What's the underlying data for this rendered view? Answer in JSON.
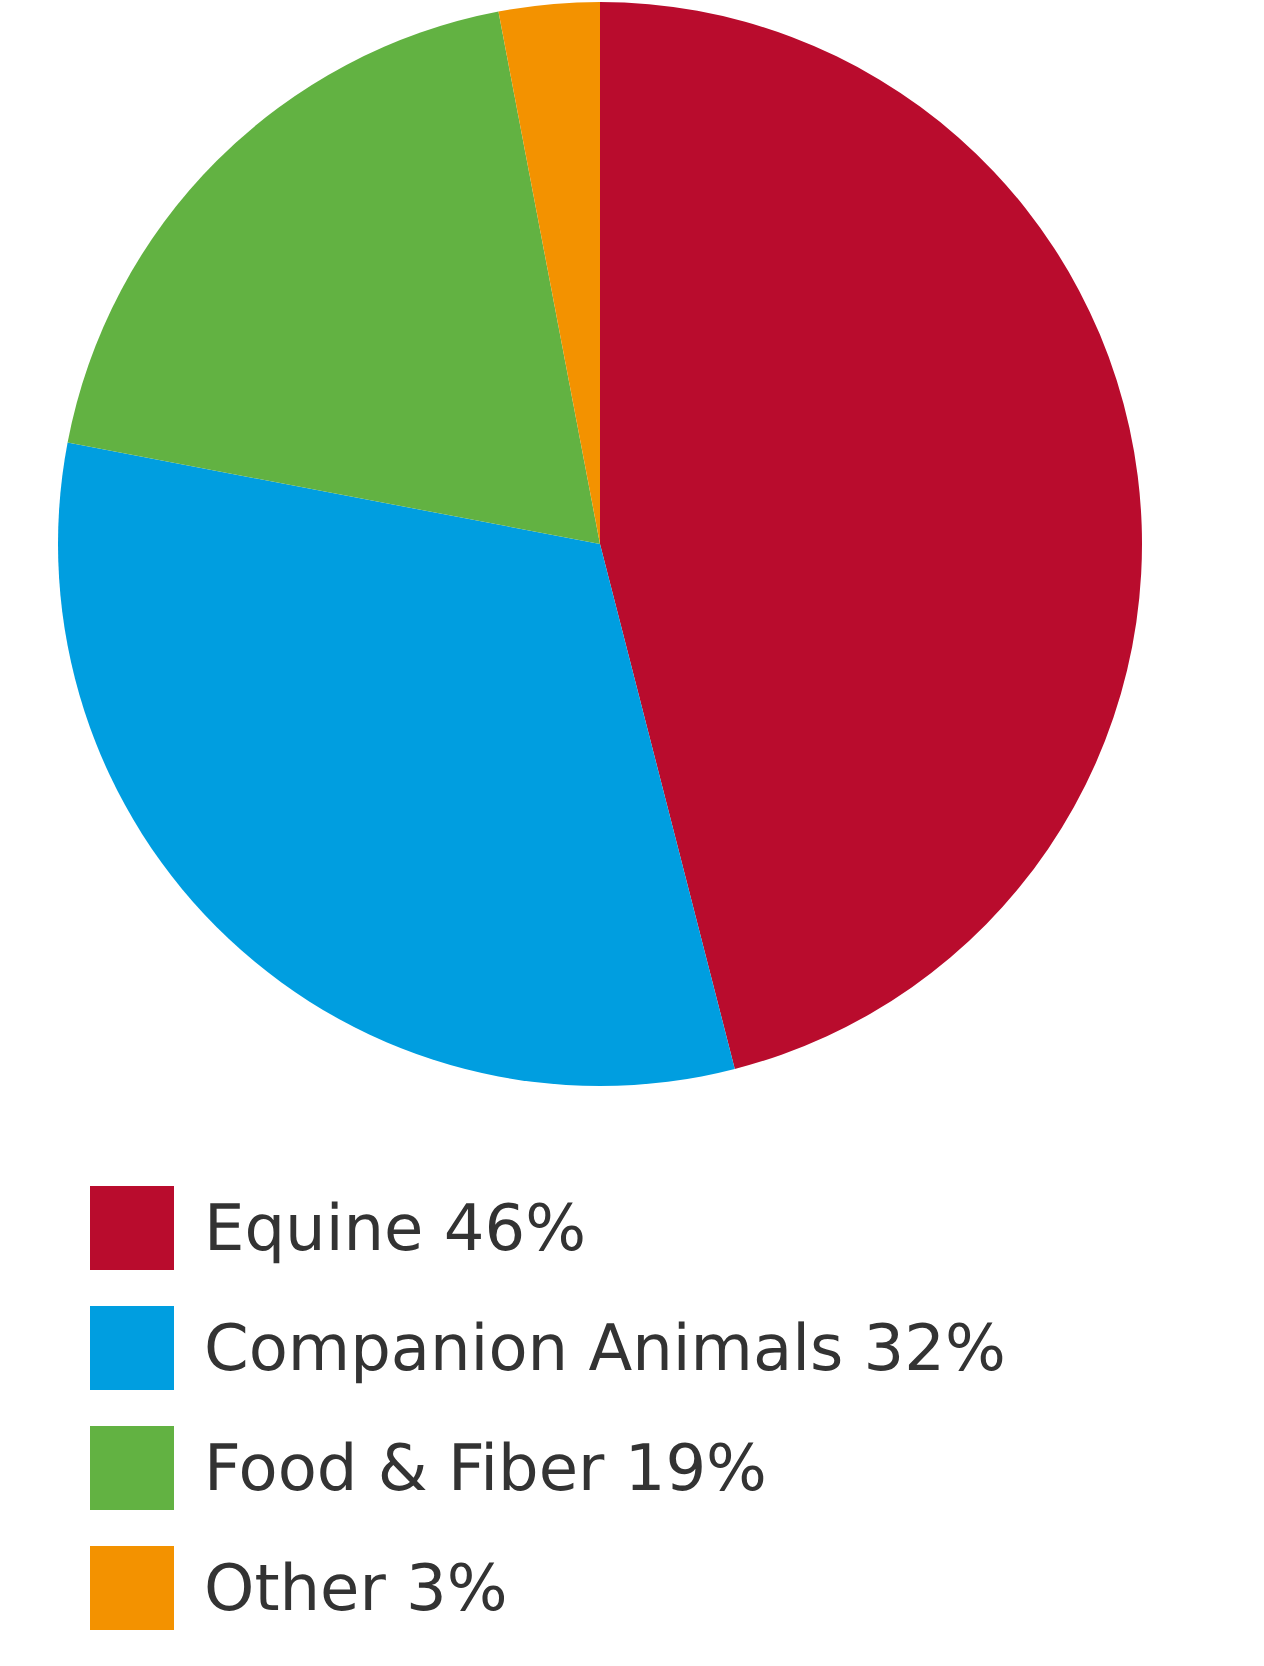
{
  "chart_data": {
    "type": "pie",
    "categories": [
      "Equine",
      "Companion Animals",
      "Food & Fiber",
      "Other"
    ],
    "values": [
      46,
      32,
      19,
      3
    ],
    "value_labels": [
      "46%",
      "32%",
      "19%",
      "3%"
    ],
    "colors": [
      "#b90c2d",
      "#009ee0",
      "#62b242",
      "#f39200"
    ],
    "legend": "bottom"
  }
}
